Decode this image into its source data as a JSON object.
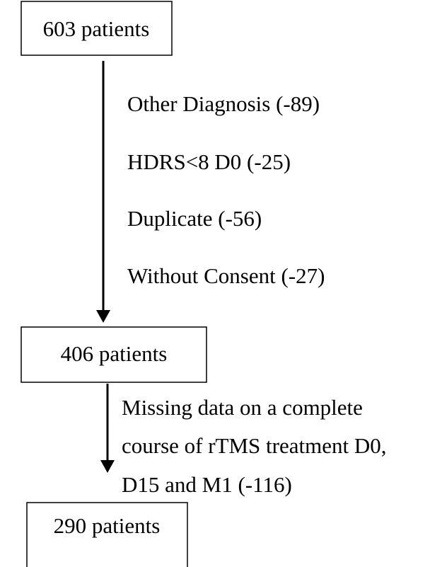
{
  "nodes": [
    {
      "label": "603 patients"
    },
    {
      "label": "406 patients"
    },
    {
      "label": "290 patients"
    }
  ],
  "exclusions": [
    {
      "lines": [
        "Other Diagnosis (-89)",
        "HDRS<8 D0 (-25)",
        "Duplicate (-56)",
        "Without Consent (-27)"
      ]
    },
    {
      "lines": [
        "Missing data on a complete",
        "course of rTMS treatment D0,",
        "D15 and M1 (-116)"
      ]
    }
  ]
}
